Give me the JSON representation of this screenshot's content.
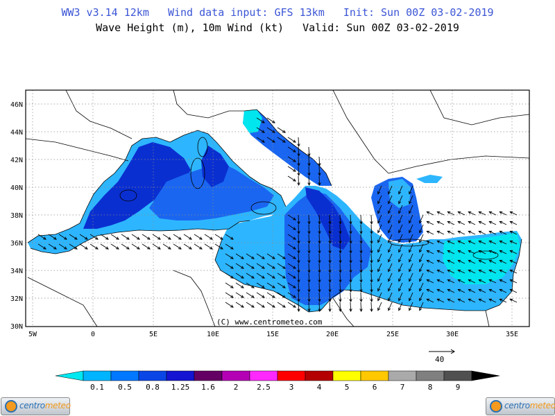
{
  "header": {
    "line1": "WW3 v3.14 12km   Wind data input: GFS 13km   Init: Sun 00Z 03-02-2019",
    "line2": "Wave Height (m), 10m Wind (kt)   Valid: Sun 00Z 03-02-2019"
  },
  "map": {
    "lat_labels": [
      "46N",
      "44N",
      "42N",
      "40N",
      "38N",
      "36N",
      "34N",
      "32N",
      "30N"
    ],
    "lon_labels": [
      "5W",
      "0",
      "5E",
      "10E",
      "15E",
      "20E",
      "25E",
      "30E",
      "35E"
    ],
    "watermark": "(C) www.centrometeo.com"
  },
  "wind_reference": {
    "value": "40"
  },
  "colorbar": {
    "labels": [
      "0.1",
      "0.5",
      "0.8",
      "1.25",
      "1.6",
      "2",
      "2.5",
      "3",
      "4",
      "5",
      "6",
      "7",
      "8",
      "9"
    ],
    "colors": [
      "#00e8f0",
      "#00b4ff",
      "#0078ff",
      "#0a46e6",
      "#1414d2",
      "#640064",
      "#b400b4",
      "#ff28ff",
      "#ff0000",
      "#b40000",
      "#ffff00",
      "#ffc800",
      "#aaaaaa",
      "#808080",
      "#505050",
      "#000000"
    ]
  },
  "logos": {
    "left_text_a": "centro",
    "left_text_b": "meteo",
    "right_text_a": "centro",
    "right_text_b": "meteo"
  },
  "colors": {
    "sea_dark": "#0a2fd0",
    "sea_mid": "#1a66f0",
    "sea_light": "#2db6ff",
    "sea_lightest": "#00e6ef",
    "title_blue": "#3b55d6"
  }
}
